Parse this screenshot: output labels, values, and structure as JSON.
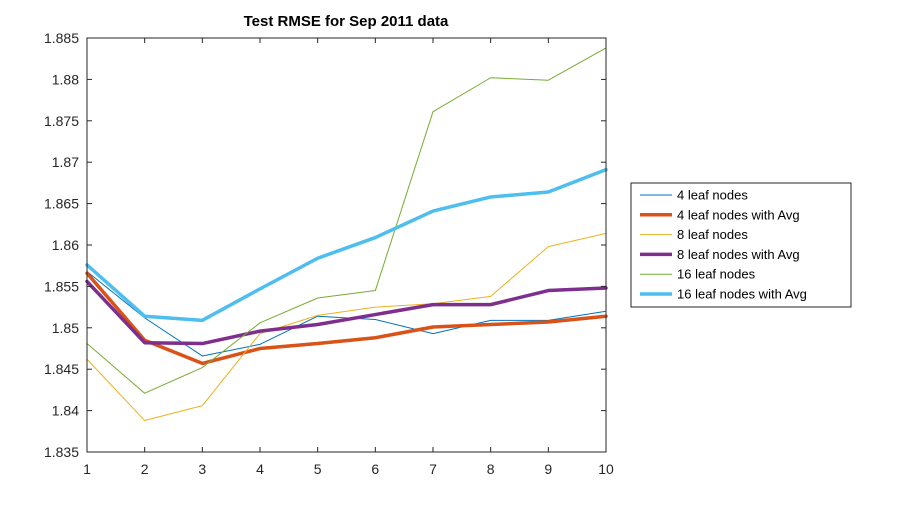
{
  "chart_data": {
    "type": "line",
    "title": "Test RMSE for Sep 2011 data",
    "xlabel": "",
    "ylabel": "",
    "xlim": [
      1,
      10
    ],
    "ylim": [
      1.835,
      1.885
    ],
    "x": [
      1,
      2,
      3,
      4,
      5,
      6,
      7,
      8,
      9,
      10
    ],
    "x_ticks": [
      "1",
      "2",
      "3",
      "4",
      "5",
      "6",
      "7",
      "8",
      "9",
      "10"
    ],
    "y_ticks": [
      {
        "value": 1.835,
        "label": "1.835"
      },
      {
        "value": 1.84,
        "label": "1.84"
      },
      {
        "value": 1.845,
        "label": "1.845"
      },
      {
        "value": 1.85,
        "label": "1.85"
      },
      {
        "value": 1.855,
        "label": "1.855"
      },
      {
        "value": 1.86,
        "label": "1.86"
      },
      {
        "value": 1.865,
        "label": "1.865"
      },
      {
        "value": 1.87,
        "label": "1.87"
      },
      {
        "value": 1.875,
        "label": "1.875"
      },
      {
        "value": 1.88,
        "label": "1.88"
      },
      {
        "value": 1.885,
        "label": "1.885"
      }
    ],
    "grid": false,
    "legend_position": "right",
    "series": [
      {
        "name": "4 leaf nodes",
        "color": "#0072BD",
        "weight": "thin",
        "values": [
          1.8568,
          1.8512,
          1.8466,
          1.848,
          1.8514,
          1.851,
          1.8493,
          1.8509,
          1.8509,
          1.852
        ]
      },
      {
        "name": "4 leaf nodes with Avg",
        "color": "#D95319",
        "weight": "thick",
        "values": [
          1.8566,
          1.8485,
          1.8457,
          1.8475,
          1.8481,
          1.8488,
          1.8501,
          1.8504,
          1.8507,
          1.8514
        ]
      },
      {
        "name": "8 leaf nodes",
        "color": "#EDB120",
        "weight": "thin",
        "values": [
          1.8462,
          1.8388,
          1.8406,
          1.8493,
          1.8515,
          1.8525,
          1.8529,
          1.8538,
          1.8598,
          1.8614
        ]
      },
      {
        "name": "8 leaf nodes with Avg",
        "color": "#7E2F8E",
        "weight": "thick",
        "values": [
          1.8556,
          1.8482,
          1.8481,
          1.8496,
          1.8504,
          1.8516,
          1.8528,
          1.8528,
          1.8545,
          1.8548
        ]
      },
      {
        "name": "16 leaf nodes",
        "color": "#77AC30",
        "weight": "thin",
        "values": [
          1.8481,
          1.8421,
          1.8452,
          1.8506,
          1.8536,
          1.8545,
          1.8761,
          1.8802,
          1.8799,
          1.8838
        ]
      },
      {
        "name": "16 leaf nodes with Avg",
        "color": "#4DBEEE",
        "weight": "thick",
        "values": [
          1.8576,
          1.8514,
          1.8509,
          1.8547,
          1.8584,
          1.8609,
          1.8641,
          1.8658,
          1.8664,
          1.8691
        ]
      }
    ]
  }
}
